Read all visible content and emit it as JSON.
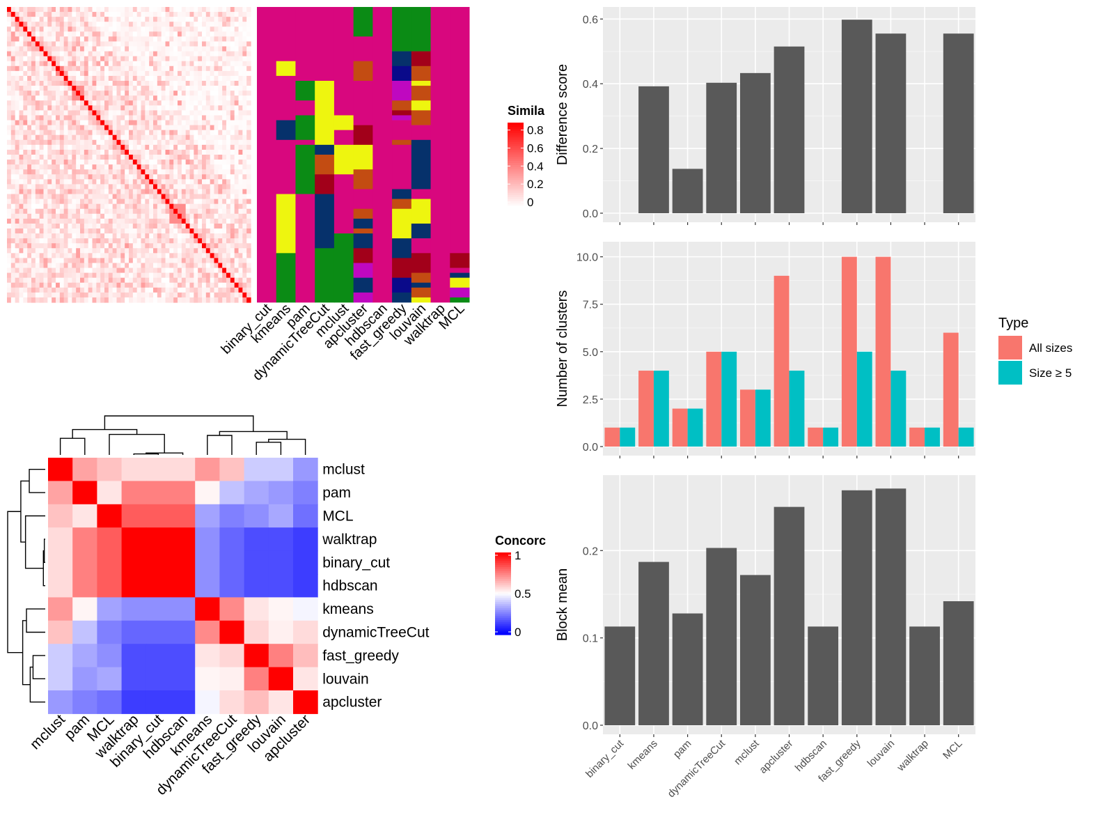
{
  "colors": {
    "panel_bg": "#ebebeb",
    "bar_dark": "#595959",
    "all_sizes": "#f8766d",
    "size_ge5": "#00bfc4",
    "sim_high": "#ff0000",
    "sim_low": "#ffffff",
    "conc_low": "#0000ff",
    "conc_mid": "#ffffff",
    "conc_high": "#ff0000",
    "membership": [
      "#d8077e",
      "#eef50f",
      "#0b8b15",
      "#06316b",
      "#a2001a",
      "#c34c12",
      "#bf08c0",
      "#0a0a8a"
    ]
  },
  "methods": [
    "binary_cut",
    "kmeans",
    "pam",
    "dynamicTreeCut",
    "mclust",
    "apcluster",
    "hdbscan",
    "fast_greedy",
    "louvain",
    "walktrap",
    "MCL"
  ],
  "similarity_heatmap": {
    "n": 60,
    "legend_title": "Similarity",
    "legend_title_visible": "Simila",
    "legend_ticks": [
      "0.8",
      "0.6",
      "0.4",
      "0.2",
      "0"
    ],
    "legend_values": [
      0.8,
      0.6,
      0.4,
      0.2,
      0
    ]
  },
  "concordance_heatmap": {
    "legend_title": "Concordance",
    "legend_title_visible": "Concorc",
    "legend_ticks": [
      "1",
      "0.5",
      "0"
    ],
    "legend_values": [
      1,
      0.5,
      0
    ],
    "order": [
      "mclust",
      "pam",
      "MCL",
      "walktrap",
      "binary_cut",
      "hdbscan",
      "kmeans",
      "dynamicTreeCut",
      "fast_greedy",
      "louvain",
      "apcluster"
    ],
    "matrix": [
      [
        1.0,
        0.68,
        0.62,
        0.57,
        0.57,
        0.57,
        0.7,
        0.62,
        0.4,
        0.4,
        0.3
      ],
      [
        0.68,
        1.0,
        0.55,
        0.75,
        0.75,
        0.75,
        0.52,
        0.38,
        0.33,
        0.3,
        0.25
      ],
      [
        0.62,
        0.55,
        1.0,
        0.82,
        0.82,
        0.82,
        0.32,
        0.25,
        0.28,
        0.33,
        0.22
      ],
      [
        0.57,
        0.75,
        0.82,
        1.0,
        1.0,
        1.0,
        0.28,
        0.2,
        0.15,
        0.15,
        0.12
      ],
      [
        0.57,
        0.75,
        0.82,
        1.0,
        1.0,
        1.0,
        0.28,
        0.2,
        0.15,
        0.15,
        0.12
      ],
      [
        0.57,
        0.75,
        0.82,
        1.0,
        1.0,
        1.0,
        0.28,
        0.2,
        0.15,
        0.15,
        0.12
      ],
      [
        0.7,
        0.52,
        0.32,
        0.28,
        0.28,
        0.28,
        1.0,
        0.73,
        0.55,
        0.52,
        0.48
      ],
      [
        0.62,
        0.38,
        0.25,
        0.2,
        0.2,
        0.2,
        0.73,
        1.0,
        0.58,
        0.53,
        0.57
      ],
      [
        0.4,
        0.33,
        0.28,
        0.15,
        0.15,
        0.15,
        0.55,
        0.58,
        1.0,
        0.75,
        0.63
      ],
      [
        0.4,
        0.3,
        0.33,
        0.15,
        0.15,
        0.15,
        0.52,
        0.53,
        0.75,
        1.0,
        0.55
      ],
      [
        0.3,
        0.25,
        0.22,
        0.12,
        0.12,
        0.12,
        0.48,
        0.57,
        0.63,
        0.55,
        1.0
      ]
    ]
  },
  "chart_data": [
    {
      "type": "bar",
      "categories": [
        "binary_cut",
        "kmeans",
        "pam",
        "dynamicTreeCut",
        "mclust",
        "apcluster",
        "hdbscan",
        "fast_greedy",
        "louvain",
        "walktrap",
        "MCL"
      ],
      "values": [
        0,
        0.392,
        0.137,
        0.403,
        0.433,
        0.515,
        0,
        0.598,
        0.555,
        0,
        0.555
      ],
      "ylabel": "Difference score",
      "ylim": [
        0,
        0.62
      ],
      "yticks": [
        0,
        0.2,
        0.4,
        0.6
      ],
      "ytick_labels": [
        "0.0",
        "0.2",
        "0.4",
        "0.6"
      ],
      "grid": true
    },
    {
      "type": "bar",
      "categories": [
        "binary_cut",
        "kmeans",
        "pam",
        "dynamicTreeCut",
        "mclust",
        "apcluster",
        "hdbscan",
        "fast_greedy",
        "louvain",
        "walktrap",
        "MCL"
      ],
      "series": [
        {
          "name": "All sizes",
          "values": [
            1,
            4,
            2,
            5,
            3,
            9,
            1,
            10,
            10,
            1,
            6
          ]
        },
        {
          "name": "Size ≥ 5",
          "values": [
            1,
            4,
            2,
            5,
            3,
            4,
            1,
            5,
            4,
            1,
            1
          ]
        }
      ],
      "ylabel": "Number of clusters",
      "ylim": [
        0,
        10.5
      ],
      "yticks": [
        0,
        2.5,
        5,
        7.5,
        10
      ],
      "ytick_labels": [
        "0.0",
        "2.5",
        "5.0",
        "7.5",
        "10.0"
      ],
      "legend_title": "Type",
      "legend_placement": "right",
      "grid": true
    },
    {
      "type": "bar",
      "categories": [
        "binary_cut",
        "kmeans",
        "pam",
        "dynamicTreeCut",
        "mclust",
        "apcluster",
        "hdbscan",
        "fast_greedy",
        "louvain",
        "walktrap",
        "MCL"
      ],
      "values": [
        0.113,
        0.187,
        0.128,
        0.203,
        0.172,
        0.25,
        0.113,
        0.269,
        0.271,
        0.113,
        0.142
      ],
      "ylabel": "Block mean",
      "ylim": [
        0,
        0.28
      ],
      "yticks": [
        0,
        0.1,
        0.2
      ],
      "ytick_labels": [
        "0.0",
        "0.1",
        "0.2"
      ],
      "grid": true
    }
  ]
}
